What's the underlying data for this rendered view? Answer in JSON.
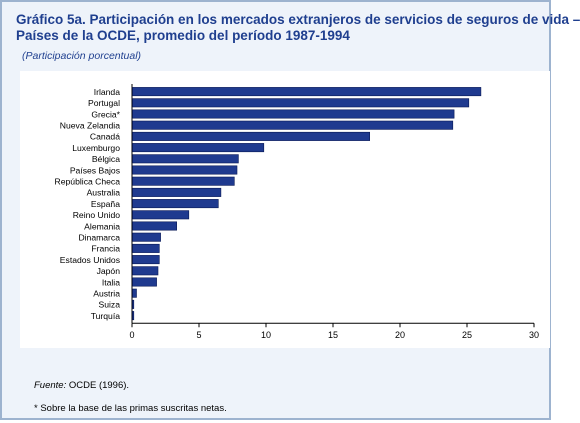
{
  "title_line1": "Gráfico 5a.  Participación en los mercados extranjeros de servicios de seguros de vida –",
  "title_line2": "Países de la OCDE, promedio del período 1987-1994",
  "subtitle": "(Participación porcentual)",
  "source_label": "Fuente:",
  "source_text": "OCDE (1996).",
  "note": "* Sobre la base de las primas suscritas netas.",
  "colors": {
    "bar": "#1f3a8f",
    "title": "#1f3f8f",
    "background": "#eef3fa"
  },
  "chart_data": {
    "type": "bar",
    "orientation": "horizontal",
    "categories": [
      "Irlanda",
      "Portugal",
      "Grecia*",
      "Nueva Zelandia",
      "Canadá",
      "Luxemburgo",
      "Bélgica",
      "Países Bajos",
      "República Checa",
      "Australia",
      "España",
      "Reino Unido",
      "Alemania",
      "Dinamarca",
      "Francia",
      "Estados Unidos",
      "Japón",
      "Italia",
      "Austria",
      "Suiza",
      "Turquía"
    ],
    "values": [
      26.0,
      25.1,
      24.0,
      23.9,
      17.7,
      9.8,
      7.9,
      7.8,
      7.6,
      6.6,
      6.4,
      4.2,
      3.3,
      2.1,
      2.0,
      2.0,
      1.9,
      1.8,
      0.3,
      0.1,
      0.1
    ],
    "xlim": [
      0,
      30
    ],
    "xticks": [
      0,
      5,
      10,
      15,
      20,
      25,
      30
    ],
    "grid": false
  }
}
